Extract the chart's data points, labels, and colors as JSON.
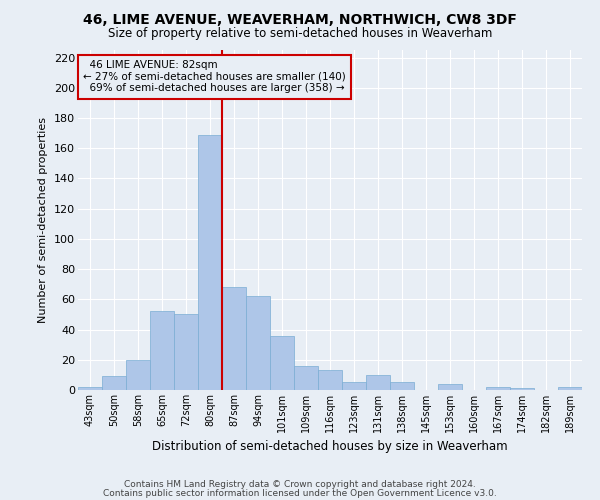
{
  "title1": "46, LIME AVENUE, WEAVERHAM, NORTHWICH, CW8 3DF",
  "title2": "Size of property relative to semi-detached houses in Weaverham",
  "xlabel": "Distribution of semi-detached houses by size in Weaverham",
  "ylabel": "Number of semi-detached properties",
  "categories": [
    "43sqm",
    "50sqm",
    "58sqm",
    "65sqm",
    "72sqm",
    "80sqm",
    "87sqm",
    "94sqm",
    "101sqm",
    "109sqm",
    "116sqm",
    "123sqm",
    "131sqm",
    "138sqm",
    "145sqm",
    "153sqm",
    "160sqm",
    "167sqm",
    "174sqm",
    "182sqm",
    "189sqm"
  ],
  "values": [
    2,
    9,
    20,
    52,
    50,
    169,
    68,
    62,
    36,
    16,
    13,
    5,
    10,
    5,
    0,
    4,
    0,
    2,
    1,
    0,
    2
  ],
  "bar_color": "#aec6e8",
  "bar_edgecolor": "#7aadd4",
  "highlight_label": "46 LIME AVENUE: 82sqm",
  "pct_smaller": "27% of semi-detached houses are smaller (140)",
  "pct_larger": "69% of semi-detached houses are larger (358)",
  "vline_bin_index": 5,
  "vline_color": "#cc0000",
  "annotation_box_edgecolor": "#cc0000",
  "background_color": "#e8eef5",
  "grid_color": "#ffffff",
  "ylim": [
    0,
    225
  ],
  "yticks": [
    0,
    20,
    40,
    60,
    80,
    100,
    120,
    140,
    160,
    180,
    200,
    220
  ],
  "footer1": "Contains HM Land Registry data © Crown copyright and database right 2024.",
  "footer2": "Contains public sector information licensed under the Open Government Licence v3.0."
}
